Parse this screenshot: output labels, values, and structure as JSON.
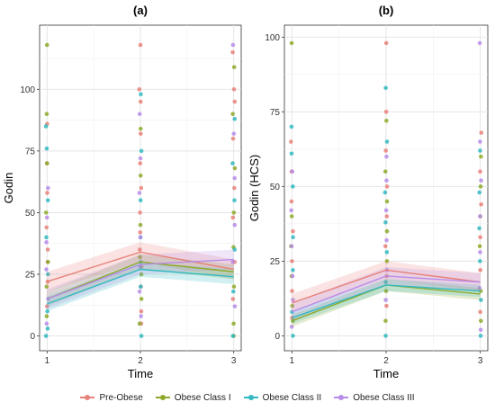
{
  "chart_data": [
    {
      "type": "scatter",
      "title": "(a)",
      "xlabel": "Time",
      "ylabel": "Godin",
      "x_ticks": [
        1,
        2,
        3
      ],
      "y_ticks": [
        0,
        25,
        50,
        75,
        100
      ],
      "xlim": [
        0.92,
        3.08
      ],
      "ylim": [
        -6,
        126
      ],
      "grid": true,
      "series": [
        {
          "name": "Pre-Obese",
          "color": "#E7817A",
          "mean": [
            22,
            34,
            27
          ],
          "ci_low": [
            18,
            30,
            23
          ],
          "ci_high": [
            26,
            38,
            31
          ],
          "points": [
            [
              1,
              22
            ],
            [
              1,
              58
            ],
            [
              1,
              70
            ],
            [
              1,
              44
            ],
            [
              1,
              35
            ],
            [
              1,
              30
            ],
            [
              1,
              12
            ],
            [
              1,
              86
            ],
            [
              2,
              118
            ],
            [
              2,
              100
            ],
            [
              2,
              95
            ],
            [
              2,
              82
            ],
            [
              2,
              70
            ],
            [
              2,
              60
            ],
            [
              2,
              50
            ],
            [
              2,
              42
            ],
            [
              2,
              35
            ],
            [
              2,
              28
            ],
            [
              2,
              20
            ],
            [
              2,
              10
            ],
            [
              2,
              5
            ],
            [
              3,
              115
            ],
            [
              3,
              100
            ],
            [
              3,
              95
            ],
            [
              3,
              80
            ],
            [
              3,
              60
            ],
            [
              3,
              48
            ],
            [
              3,
              30
            ],
            [
              3,
              15
            ]
          ]
        },
        {
          "name": "Obese Class I",
          "color": "#8DAA2C",
          "mean": [
            15,
            30,
            26
          ],
          "ci_low": [
            12,
            27,
            23
          ],
          "ci_high": [
            18,
            33,
            29
          ],
          "points": [
            [
              1,
              118
            ],
            [
              1,
              90
            ],
            [
              1,
              70
            ],
            [
              1,
              50
            ],
            [
              1,
              30
            ],
            [
              1,
              20
            ],
            [
              1,
              8
            ],
            [
              2,
              84
            ],
            [
              2,
              65
            ],
            [
              2,
              45
            ],
            [
              2,
              32
            ],
            [
              2,
              25
            ],
            [
              2,
              15
            ],
            [
              2,
              5
            ],
            [
              3,
              109
            ],
            [
              3,
              90
            ],
            [
              3,
              68
            ],
            [
              3,
              50
            ],
            [
              3,
              36
            ],
            [
              3,
              20
            ],
            [
              3,
              5
            ],
            [
              3,
              0
            ]
          ]
        },
        {
          "name": "Obese Class II",
          "color": "#33B9C1",
          "mean": [
            13,
            27,
            24
          ],
          "ci_low": [
            10,
            24,
            21
          ],
          "ci_high": [
            16,
            30,
            27
          ],
          "points": [
            [
              1,
              85
            ],
            [
              1,
              76
            ],
            [
              1,
              55
            ],
            [
              1,
              40
            ],
            [
              1,
              25
            ],
            [
              1,
              10
            ],
            [
              1,
              3
            ],
            [
              1,
              0
            ],
            [
              2,
              98
            ],
            [
              2,
              75
            ],
            [
              2,
              55
            ],
            [
              2,
              40
            ],
            [
              2,
              30
            ],
            [
              2,
              20
            ],
            [
              2,
              0
            ],
            [
              3,
              88
            ],
            [
              3,
              70
            ],
            [
              3,
              55
            ],
            [
              3,
              35
            ],
            [
              3,
              18
            ],
            [
              3,
              0
            ]
          ]
        },
        {
          "name": "Obese Class III",
          "color": "#B78CE8",
          "mean": [
            15,
            29,
            31
          ],
          "ci_low": [
            11,
            25,
            27
          ],
          "ci_high": [
            19,
            33,
            35
          ],
          "points": [
            [
              1,
              60
            ],
            [
              1,
              48
            ],
            [
              1,
              38
            ],
            [
              1,
              27
            ],
            [
              1,
              15
            ],
            [
              1,
              5
            ],
            [
              2,
              90
            ],
            [
              2,
              72
            ],
            [
              2,
              58
            ],
            [
              2,
              40
            ],
            [
              2,
              28
            ],
            [
              2,
              18
            ],
            [
              2,
              8
            ],
            [
              3,
              118
            ],
            [
              3,
              82
            ],
            [
              3,
              64
            ],
            [
              3,
              45
            ],
            [
              3,
              30
            ],
            [
              3,
              12
            ]
          ]
        }
      ]
    },
    {
      "type": "scatter",
      "title": "(b)",
      "xlabel": "Time",
      "ylabel": "Godin (HCS)",
      "x_ticks": [
        1,
        2,
        3
      ],
      "y_ticks": [
        0,
        25,
        50,
        75,
        100
      ],
      "xlim": [
        0.92,
        3.08
      ],
      "ylim": [
        -5,
        104
      ],
      "grid": true,
      "series": [
        {
          "name": "Pre-Obese",
          "color": "#E7817A",
          "mean": [
            11,
            22,
            18
          ],
          "ci_low": [
            8,
            19,
            15
          ],
          "ci_high": [
            14,
            25,
            21
          ],
          "points": [
            [
              1,
              65
            ],
            [
              1,
              55
            ],
            [
              1,
              45
            ],
            [
              1,
              35
            ],
            [
              1,
              25
            ],
            [
              1,
              15
            ],
            [
              1,
              6
            ],
            [
              2,
              98
            ],
            [
              2,
              75
            ],
            [
              2,
              62
            ],
            [
              2,
              50
            ],
            [
              2,
              40
            ],
            [
              2,
              30
            ],
            [
              2,
              20
            ],
            [
              2,
              10
            ],
            [
              3,
              68
            ],
            [
              3,
              55
            ],
            [
              3,
              44
            ],
            [
              3,
              33
            ],
            [
              3,
              22
            ],
            [
              3,
              8
            ]
          ]
        },
        {
          "name": "Obese Class I",
          "color": "#8DAA2C",
          "mean": [
            5,
            17,
            14
          ],
          "ci_low": [
            3,
            15,
            12
          ],
          "ci_high": [
            7,
            19,
            16
          ],
          "points": [
            [
              1,
              98
            ],
            [
              1,
              40
            ],
            [
              1,
              30
            ],
            [
              1,
              20
            ],
            [
              1,
              10
            ],
            [
              1,
              5
            ],
            [
              2,
              72
            ],
            [
              2,
              55
            ],
            [
              2,
              45
            ],
            [
              2,
              35
            ],
            [
              2,
              25
            ],
            [
              2,
              15
            ],
            [
              2,
              5
            ],
            [
              3,
              60
            ],
            [
              3,
              50
            ],
            [
              3,
              40
            ],
            [
              3,
              30
            ],
            [
              3,
              15
            ],
            [
              3,
              5
            ]
          ]
        },
        {
          "name": "Obese Class II",
          "color": "#33B9C1",
          "mean": [
            6,
            17,
            15
          ],
          "ci_low": [
            4,
            15,
            13
          ],
          "ci_high": [
            8,
            19,
            17
          ],
          "points": [
            [
              1,
              70
            ],
            [
              1,
              61
            ],
            [
              1,
              50
            ],
            [
              1,
              33
            ],
            [
              1,
              22
            ],
            [
              1,
              8
            ],
            [
              1,
              0
            ],
            [
              2,
              83
            ],
            [
              2,
              65
            ],
            [
              2,
              48
            ],
            [
              2,
              38
            ],
            [
              2,
              28
            ],
            [
              2,
              18
            ],
            [
              2,
              0
            ],
            [
              3,
              62
            ],
            [
              3,
              48
            ],
            [
              3,
              36
            ],
            [
              3,
              25
            ],
            [
              3,
              12
            ],
            [
              3,
              0
            ]
          ]
        },
        {
          "name": "Obese Class III",
          "color": "#B78CE8",
          "mean": [
            8,
            20,
            18
          ],
          "ci_low": [
            5,
            17,
            15
          ],
          "ci_high": [
            11,
            23,
            21
          ],
          "points": [
            [
              1,
              55
            ],
            [
              1,
              42
            ],
            [
              1,
              30
            ],
            [
              1,
              20
            ],
            [
              1,
              12
            ],
            [
              1,
              3
            ],
            [
              2,
              60
            ],
            [
              2,
              52
            ],
            [
              2,
              42
            ],
            [
              2,
              32
            ],
            [
              2,
              22
            ],
            [
              2,
              12
            ],
            [
              3,
              98
            ],
            [
              3,
              65
            ],
            [
              3,
              52
            ],
            [
              3,
              40
            ],
            [
              3,
              28
            ],
            [
              3,
              16
            ],
            [
              3,
              2
            ]
          ]
        }
      ]
    }
  ]
}
